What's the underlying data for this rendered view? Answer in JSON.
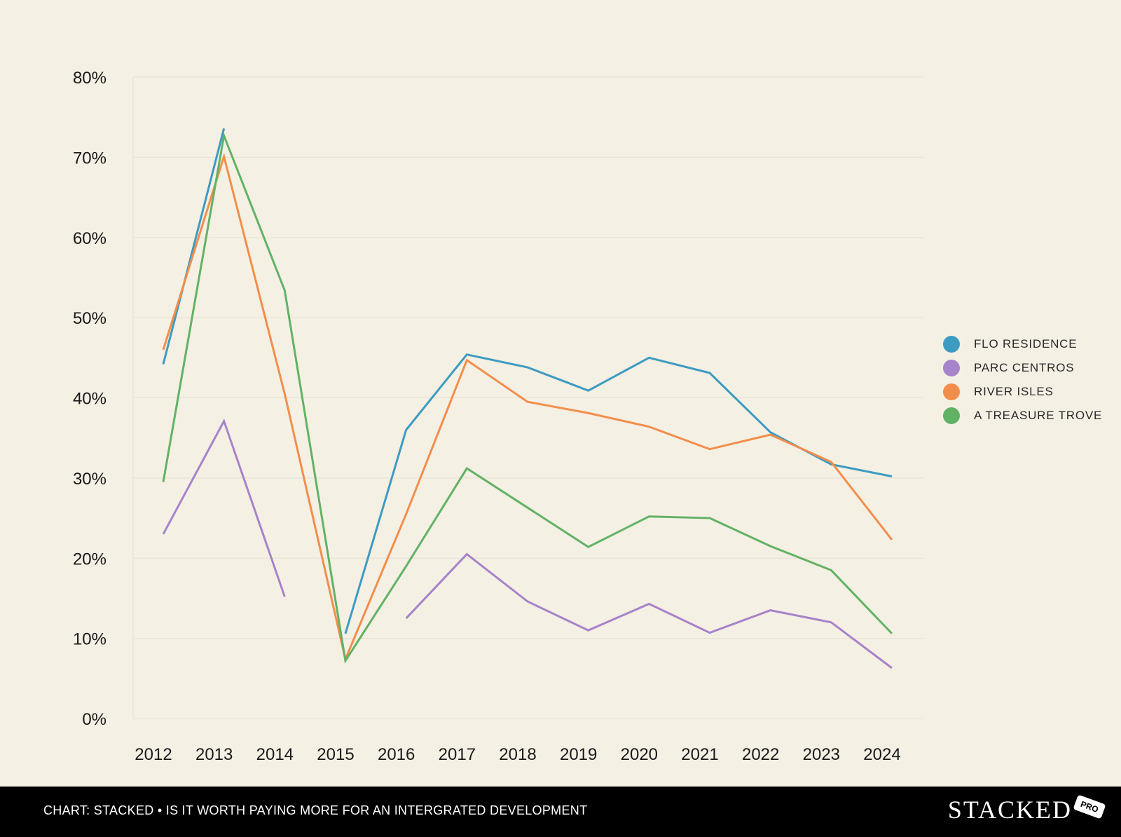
{
  "chart_data": {
    "type": "line",
    "categories": [
      "2012",
      "2013",
      "2014",
      "2015",
      "2016",
      "2017",
      "2018",
      "2019",
      "2020",
      "2021",
      "2022",
      "2023",
      "2024"
    ],
    "y_ticks": [
      "0%",
      "10%",
      "20%",
      "30%",
      "40%",
      "50%",
      "60%",
      "70%",
      "80%"
    ],
    "ylim": [
      0,
      80
    ],
    "grid": true,
    "legend_position": "right",
    "series": [
      {
        "name": "FLO RESIDENCE",
        "color": "#3d9bc1",
        "values": [
          44.2,
          73.6,
          null,
          10.6,
          36.0,
          45.4,
          43.8,
          40.9,
          45.0,
          43.1,
          35.7,
          31.7,
          30.2
        ]
      },
      {
        "name": "PARC CENTROS",
        "color": "#a783c9",
        "values": [
          23.0,
          37.1,
          15.2,
          null,
          12.5,
          20.5,
          14.6,
          11.0,
          14.3,
          10.7,
          13.5,
          12.0,
          6.3
        ]
      },
      {
        "name": "RIVER ISLES",
        "color": "#f28e4c",
        "values": [
          46.0,
          70.1,
          40.5,
          7.4,
          25.5,
          44.7,
          39.5,
          38.1,
          36.4,
          33.6,
          35.4,
          32.0,
          22.3
        ]
      },
      {
        "name": "A TREASURE TROVE",
        "color": "#62b266",
        "values": [
          29.5,
          72.7,
          53.4,
          7.2,
          19.0,
          31.2,
          26.3,
          21.4,
          25.2,
          25.0,
          21.5,
          18.5,
          10.6
        ]
      }
    ]
  },
  "footer": {
    "caption": "CHART: STACKED • IS IT WORTH PAYING MORE FOR AN INTERGRATED DEVELOPMENT",
    "brand": "STACKED",
    "badge": "PRO"
  },
  "colors": {
    "background": "#f5f0e4",
    "footer_background": "#000000",
    "gridline": "#e8e1d2"
  }
}
